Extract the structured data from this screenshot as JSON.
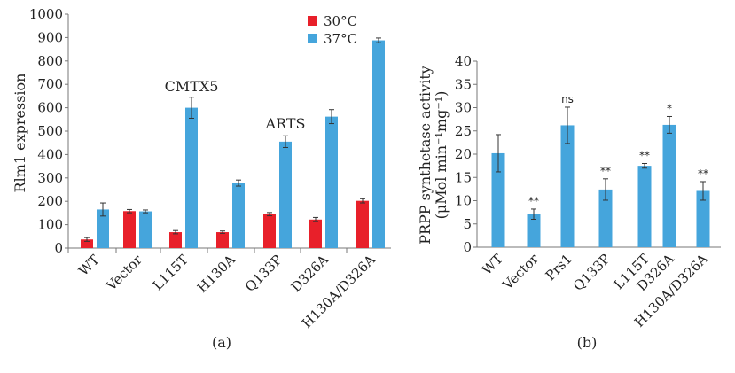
{
  "chart_data": [
    {
      "type": "bar",
      "panel_label": "(a)",
      "ylabel": "Rlm1 expression",
      "ylim": [
        0,
        1000
      ],
      "yticks": [
        0,
        100,
        200,
        300,
        400,
        500,
        600,
        700,
        800,
        900,
        1000
      ],
      "categories": [
        "WT",
        "Vector",
        "L115T",
        "H130A",
        "Q133P",
        "D326A",
        "H130A/D326A"
      ],
      "legend_position": "top-right",
      "series": [
        {
          "name": "30°C",
          "color": "#e8202a",
          "values": [
            37,
            158,
            68,
            68,
            145,
            122,
            202
          ],
          "errors": [
            8,
            7,
            7,
            5,
            7,
            9,
            9
          ]
        },
        {
          "name": "37°C",
          "color": "#45a5dc",
          "values": [
            165,
            157,
            600,
            278,
            455,
            562,
            888
          ],
          "errors": [
            28,
            6,
            45,
            13,
            25,
            30,
            10
          ]
        }
      ],
      "annotations": [
        {
          "text": "CMTX5",
          "category": "L115T"
        },
        {
          "text": "ARTS",
          "category": "Q133P"
        }
      ]
    },
    {
      "type": "bar",
      "panel_label": "(b)",
      "ylabel": "PRPP synthetase activity (μMol min⁻¹mg⁻¹)",
      "ylim": [
        0,
        40
      ],
      "yticks": [
        0,
        5,
        10,
        15,
        20,
        25,
        30,
        35,
        40
      ],
      "categories": [
        "WT",
        "Vector",
        "Prs1",
        "Q133P",
        "L115T",
        "D326A",
        "H130A/D326A"
      ],
      "series": [
        {
          "color": "#45a5dc",
          "values": [
            20.2,
            7.1,
            26.2,
            12.4,
            17.5,
            26.3,
            12.1
          ],
          "errors": [
            4.0,
            1.1,
            3.9,
            2.3,
            0.5,
            1.8,
            2.0
          ]
        }
      ],
      "significance": [
        "",
        "**",
        "ns",
        "**",
        "**",
        "*",
        "**"
      ]
    }
  ]
}
